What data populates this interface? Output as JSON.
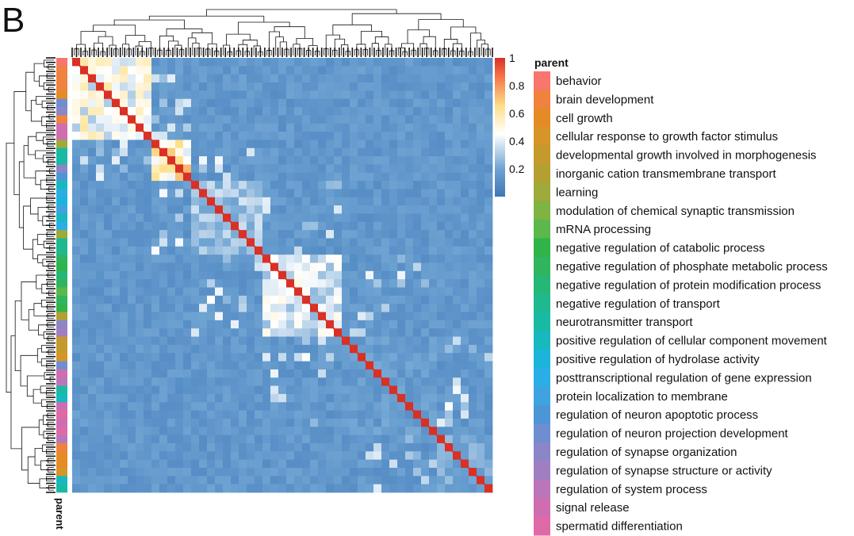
{
  "panel_letter": "B",
  "chart_data": {
    "type": "heatmap",
    "description_kind": "clustered similarity heatmap with row/column dendrograms",
    "value_range": [
      0,
      1
    ],
    "colorbar": {
      "ticks": [
        0.2,
        0.4,
        0.6,
        0.8,
        1
      ],
      "tick_labels": [
        "0.2",
        "0.4",
        "0.6",
        "0.8",
        "1"
      ],
      "colors": [
        "#3e77b8",
        "#6ea3d2",
        "#ffffff",
        "#fee08b",
        "#f46d43",
        "#d73027"
      ]
    },
    "row_annotation_label": "parent",
    "legend": {
      "title": "parent",
      "placement": "right",
      "entries": [
        {
          "label": "behavior",
          "color": "#f8766d"
        },
        {
          "label": "brain development",
          "color": "#f08240"
        },
        {
          "label": "cell growth",
          "color": "#e58b26"
        },
        {
          "label": "cellular response to growth factor stimulus",
          "color": "#d69528"
        },
        {
          "label": "developmental growth involved in morphogenesis",
          "color": "#c49a2c"
        },
        {
          "label": "inorganic cation transmembrane transport",
          "color": "#b3a030"
        },
        {
          "label": "learning",
          "color": "#9eaa3a"
        },
        {
          "label": "modulation of chemical synaptic transmission",
          "color": "#7fb342"
        },
        {
          "label": "mRNA processing",
          "color": "#5bb84a"
        },
        {
          "label": "negative regulation of catabolic process",
          "color": "#2fb44a"
        },
        {
          "label": "negative regulation of phosphate metabolic process",
          "color": "#2fb55e"
        },
        {
          "label": "negative regulation of protein modification process",
          "color": "#25b777"
        },
        {
          "label": "negative regulation of transport",
          "color": "#1eb98e"
        },
        {
          "label": "neurotransmitter transport",
          "color": "#19baa4"
        },
        {
          "label": "positive regulation of cellular component movement",
          "color": "#17b9be"
        },
        {
          "label": "positive regulation of hydrolase activity",
          "color": "#1bb4da"
        },
        {
          "label": "posttranscriptional regulation of gene expression",
          "color": "#2aaee6"
        },
        {
          "label": "protein localization to membrane",
          "color": "#3ea3e0"
        },
        {
          "label": "regulation of neuron apoptotic process",
          "color": "#4c96d6"
        },
        {
          "label": "regulation of neuron projection development",
          "color": "#6f8ecf"
        },
        {
          "label": "regulation of synapse organization",
          "color": "#8a86c8"
        },
        {
          "label": "regulation of synapse structure or activity",
          "color": "#a07fc1"
        },
        {
          "label": "regulation of system process",
          "color": "#bb76bb"
        },
        {
          "label": "signal release",
          "color": "#cf6db1"
        },
        {
          "label": "spermatid differentiation",
          "color": "#e06aa8"
        }
      ]
    },
    "clusters_along_diagonal": [
      {
        "span": [
          0.0,
          0.18
        ],
        "level": 0.55
      },
      {
        "span": [
          0.18,
          0.28
        ],
        "level": 0.7
      },
      {
        "span": [
          0.28,
          0.45
        ],
        "level": 0.35
      },
      {
        "span": [
          0.45,
          0.64
        ],
        "level": 0.45
      },
      {
        "span": [
          0.64,
          0.86
        ],
        "level": 0.2
      },
      {
        "span": [
          0.86,
          1.0
        ],
        "level": 0.25
      }
    ],
    "background_level": 0.1,
    "grid": false
  }
}
